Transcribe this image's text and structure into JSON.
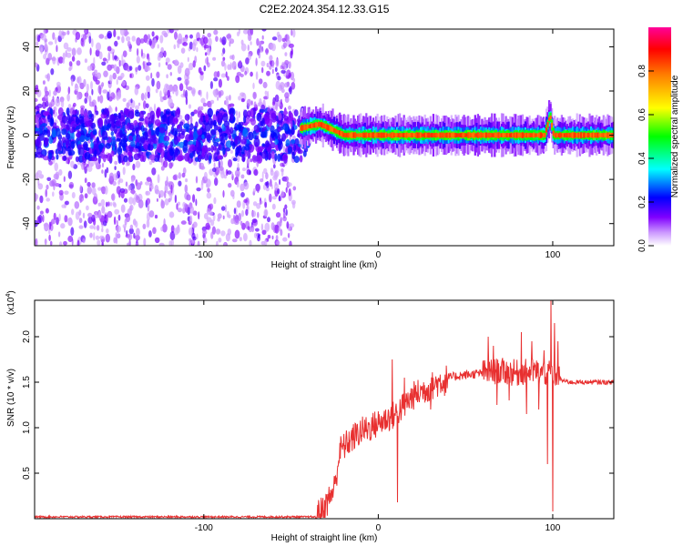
{
  "title": "C2E2.2024.354.12.33.G15",
  "chart_data": [
    {
      "type": "heatmap",
      "xlabel": "Height of straight line (km)",
      "ylabel": "Frequency (Hz)",
      "xlim": [
        -197,
        135
      ],
      "ylim": [
        -50,
        48
      ],
      "xticks": [
        -100,
        0,
        100
      ],
      "yticks": [
        -40,
        -20,
        0,
        20,
        40
      ],
      "colorbar": {
        "label": "Normalized spectral amplitude",
        "range": [
          0,
          1
        ],
        "ticks": [
          "0.0",
          "0.2",
          "0.4",
          "0.6",
          "0.8"
        ],
        "colors": [
          "#ffffff",
          "#cc99ff",
          "#8000ff",
          "#0000ff",
          "#00ffff",
          "#00ff00",
          "#ffff00",
          "#ff8000",
          "#ff0000",
          "#ff00aa"
        ]
      },
      "ridge": {
        "description_values_hz_vs_km": [
          [
            -40,
            4
          ],
          [
            -34,
            5
          ],
          [
            -28,
            3
          ],
          [
            -20,
            0
          ],
          [
            0,
            0
          ],
          [
            50,
            0
          ],
          [
            95,
            0
          ],
          [
            98,
            9
          ],
          [
            100,
            0
          ],
          [
            135,
            0
          ]
        ]
      },
      "noise_region_km": [
        -197,
        -48
      ],
      "noise_amplitude_range": [
        0.05,
        0.45
      ]
    },
    {
      "type": "line",
      "xlabel": "Height of straight line (km)",
      "ylabel": "SNR (10 * v/v)",
      "exponent": "(x10",
      "exponent_sup": "4",
      "exponent_close": ")",
      "xlim": [
        -197,
        135
      ],
      "ylim": [
        0,
        2.4
      ],
      "xticks": [
        -100,
        0,
        100
      ],
      "yticks": [
        0.5,
        1.0,
        1.5,
        2.0
      ],
      "ytick_labels": [
        "0.5",
        "1.0",
        "1.5",
        "2.0"
      ],
      "color": "#e83030",
      "envelope": {
        "x": [
          -197,
          -60,
          -36,
          -33,
          -30,
          -25,
          -22,
          -15,
          -10,
          -5,
          0,
          10,
          20,
          30,
          40,
          50,
          60,
          70,
          80,
          90,
          95,
          100,
          105,
          110,
          120,
          135
        ],
        "y": [
          0.02,
          0.02,
          0.02,
          0.08,
          0.15,
          0.35,
          0.75,
          0.88,
          0.96,
          1.0,
          1.05,
          1.15,
          1.35,
          1.45,
          1.55,
          1.58,
          1.6,
          1.62,
          1.6,
          1.62,
          1.6,
          1.62,
          1.52,
          1.5,
          1.5,
          1.5
        ]
      },
      "spikes": [
        {
          "x": 8,
          "y": 1.75
        },
        {
          "x": 11,
          "y": 0.18
        },
        {
          "x": 15,
          "y": 1.55
        },
        {
          "x": 30,
          "y": 1.2
        },
        {
          "x": 38,
          "y": 1.35
        },
        {
          "x": 63,
          "y": 2.0
        },
        {
          "x": 68,
          "y": 1.25
        },
        {
          "x": 66,
          "y": 1.9
        },
        {
          "x": 75,
          "y": 1.3
        },
        {
          "x": 82,
          "y": 2.05
        },
        {
          "x": 85,
          "y": 1.15
        },
        {
          "x": 88,
          "y": 1.95
        },
        {
          "x": 92,
          "y": 1.2
        },
        {
          "x": 95,
          "y": 1.85
        },
        {
          "x": 97,
          "y": 0.6
        },
        {
          "x": 99,
          "y": 2.4
        },
        {
          "x": 100,
          "y": 0.08
        },
        {
          "x": 101,
          "y": 2.15
        },
        {
          "x": 103,
          "y": 1.95
        }
      ]
    }
  ]
}
